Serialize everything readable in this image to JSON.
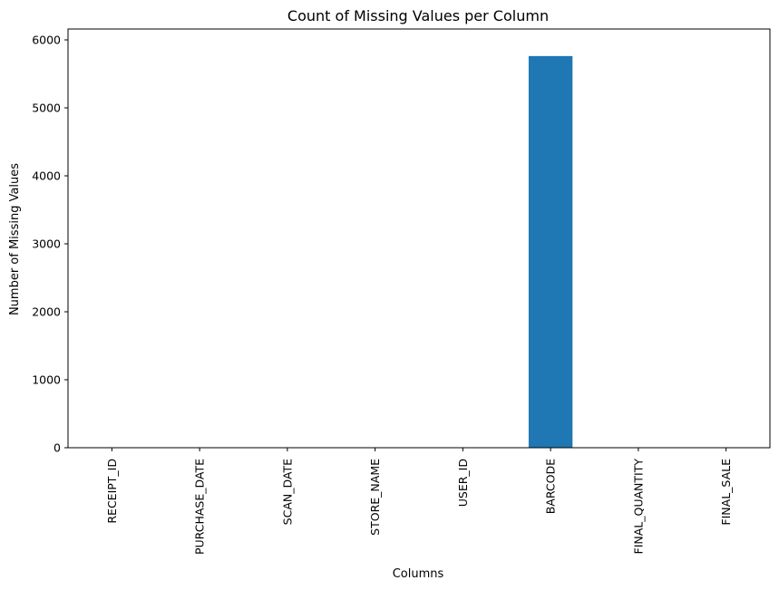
{
  "chart_data": {
    "type": "bar",
    "title": "Count of Missing Values per Column",
    "xlabel": "Columns",
    "ylabel": "Number of Missing Values",
    "categories": [
      "RECEIPT_ID",
      "PURCHASE_DATE",
      "SCAN_DATE",
      "STORE_NAME",
      "USER_ID",
      "BARCODE",
      "FINAL_QUANTITY",
      "FINAL_SALE"
    ],
    "values": [
      0,
      0,
      0,
      0,
      0,
      5762,
      0,
      0
    ],
    "ylim": [
      0,
      6160
    ],
    "yticks": [
      0,
      1000,
      2000,
      3000,
      4000,
      5000,
      6000
    ],
    "bar_color": "#1f77b4",
    "grid": false,
    "legend": "none"
  }
}
